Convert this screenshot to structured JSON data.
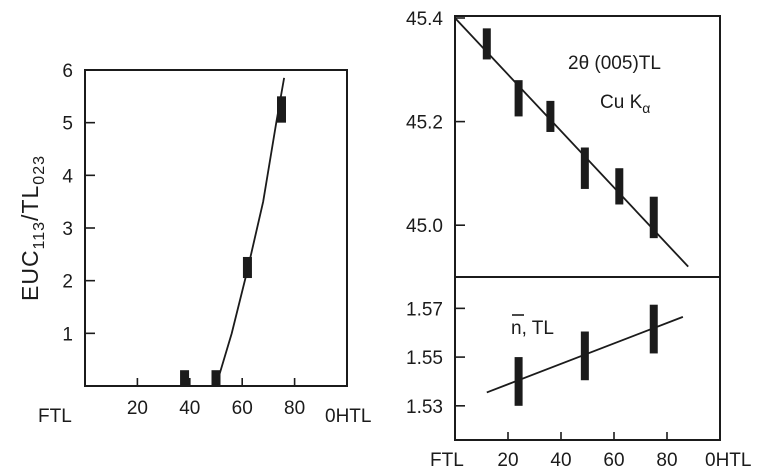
{
  "chart_data": [
    {
      "type": "scatter",
      "ylabel": "EUC113/TL023",
      "ylabel_parts": [
        "EUC",
        "113",
        "/TL",
        "023"
      ],
      "xlim": [
        0,
        100
      ],
      "ylim": [
        0,
        6
      ],
      "x_ticks": [
        20,
        40,
        60,
        80
      ],
      "x_left_label": "FTL",
      "x_right_label": "0HTL",
      "y_ticks": [
        1,
        2,
        3,
        4,
        5,
        6
      ],
      "points": [
        {
          "x": 38,
          "y": 0.15,
          "ylow": 0.0,
          "yhigh": 0.3
        },
        {
          "x": 50,
          "y": 0.15,
          "ylow": 0.0,
          "yhigh": 0.3
        },
        {
          "x": 62,
          "y": 2.25,
          "ylow": 2.05,
          "yhigh": 2.45
        },
        {
          "x": 75,
          "y": 5.25,
          "ylow": 5.0,
          "yhigh": 5.5
        }
      ],
      "curve": {
        "x": [
          50,
          56,
          62,
          68,
          73,
          76
        ],
        "y": [
          0,
          1.0,
          2.2,
          3.5,
          5.0,
          5.85
        ]
      }
    },
    {
      "type": "scatter",
      "title": "2θ (005)TL",
      "subtitle_main": "Cu K",
      "subtitle_sub": "α",
      "xlim": [
        0,
        100
      ],
      "ylim": [
        44.9,
        45.4
      ],
      "y_ticks": [
        45.4,
        45.2,
        45.0
      ],
      "y_tick_labels": [
        "45.4",
        "45.2",
        "45.0"
      ],
      "points": [
        {
          "x": 12,
          "y": 45.35,
          "ylow": 45.32,
          "yhigh": 45.38
        },
        {
          "x": 24,
          "y": 45.245,
          "ylow": 45.21,
          "yhigh": 45.28
        },
        {
          "x": 36,
          "y": 45.21,
          "ylow": 45.18,
          "yhigh": 45.24
        },
        {
          "x": 49,
          "y": 45.11,
          "ylow": 45.07,
          "yhigh": 45.15
        },
        {
          "x": 62,
          "y": 45.07,
          "ylow": 45.04,
          "yhigh": 45.11
        },
        {
          "x": 75,
          "y": 45.015,
          "ylow": 44.975,
          "yhigh": 45.055
        }
      ],
      "line": {
        "x": [
          0,
          88
        ],
        "y": [
          45.4,
          44.92
        ]
      }
    },
    {
      "type": "scatter",
      "title": "n, TL",
      "xlim": [
        0,
        100
      ],
      "ylim": [
        1.525,
        1.58
      ],
      "y_ticks": [
        1.57,
        1.55,
        1.53
      ],
      "y_tick_labels": [
        "1.57",
        "1.55",
        "1.53"
      ],
      "x_ticks": [
        20,
        40,
        60,
        80
      ],
      "x_left_label": "FTL",
      "x_right_label": "0HTL",
      "points": [
        {
          "x": 24,
          "y": 1.54,
          "ylow": 1.53,
          "yhigh": 1.55
        },
        {
          "x": 49,
          "y": 1.5505,
          "ylow": 1.5405,
          "yhigh": 1.5605
        },
        {
          "x": 75,
          "y": 1.5615,
          "ylow": 1.5515,
          "yhigh": 1.5715
        }
      ],
      "line": {
        "x": [
          12,
          86
        ],
        "y": [
          1.5355,
          1.5665
        ]
      }
    }
  ]
}
